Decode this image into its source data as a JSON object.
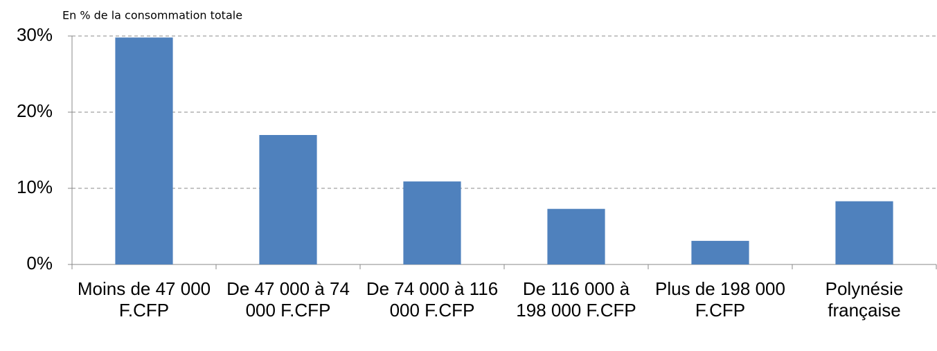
{
  "chart_data": {
    "type": "bar",
    "subtitle": "En % de la consommation totale",
    "categories": [
      "Moins de 47 000 F.CFP",
      "De 47 000 à 74 000 F.CFP",
      "De 74 000 à 116 000 F.CFP",
      "De 116 000 à 198 000 F.CFP",
      "Plus de 198 000 F.CFP",
      "Polynésie française"
    ],
    "values": [
      29.8,
      17.0,
      10.9,
      7.3,
      3.1,
      8.3
    ],
    "color": "#4f81bd",
    "ylim": [
      0,
      30
    ],
    "yticks": [
      {
        "value": 0,
        "label": "0%"
      },
      {
        "value": 10,
        "label": "10%"
      },
      {
        "value": 20,
        "label": "20%"
      },
      {
        "value": 30,
        "label": "30%"
      }
    ],
    "grid": true
  }
}
